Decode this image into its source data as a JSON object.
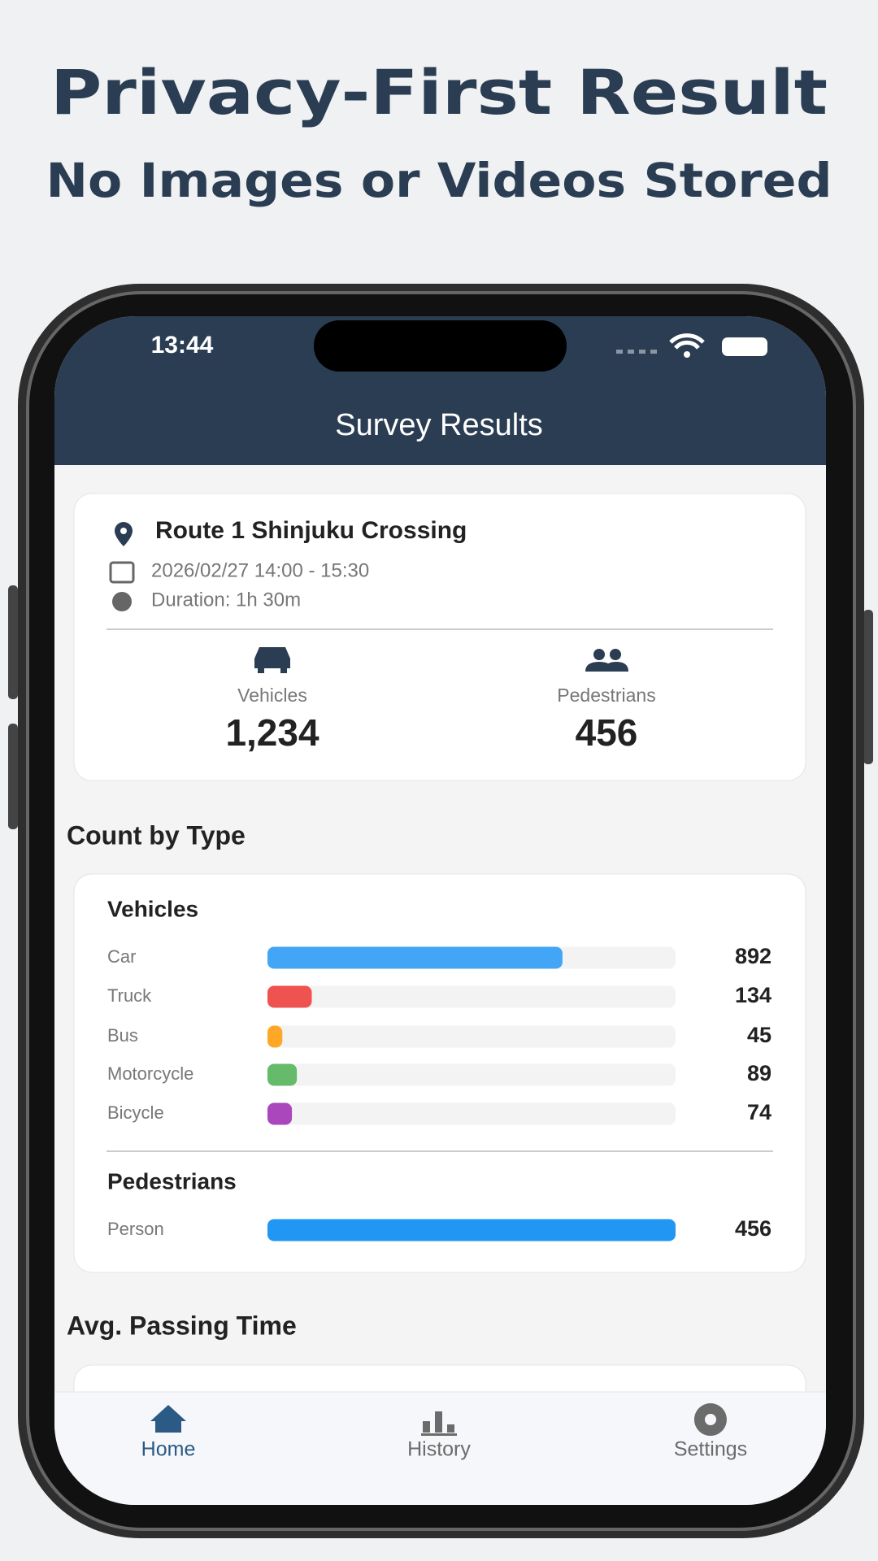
{
  "header": {
    "title": "Privacy-First Result",
    "subtitle": "No Images or Videos Stored"
  },
  "status_bar": {
    "time": "13:44"
  },
  "app_bar": {
    "title": "Survey Results"
  },
  "summary": {
    "location": "Route 1 Shinjuku Crossing",
    "date_range": "2026/02/27 14:00 - 15:30",
    "duration": "Duration: 1h 30m",
    "vehicles": {
      "label": "Vehicles",
      "value": 1234,
      "value_label": "1,234"
    },
    "pedestrians": {
      "label": "Pedestrians",
      "value": 456
    }
  },
  "count_by_type": {
    "title": "Count by Type",
    "groups": [
      {
        "title": "Vehicles",
        "items": [
          {
            "name": "Car",
            "value": 892,
            "color": "#42a5f5"
          },
          {
            "name": "Truck",
            "value": 134,
            "color": "#ef5350"
          },
          {
            "name": "Bus",
            "value": 45,
            "color": "#ffa726"
          },
          {
            "name": "Motorcycle",
            "value": 89,
            "color": "#66bb6a"
          },
          {
            "name": "Bicycle",
            "value": 74,
            "color": "#ab47bc"
          }
        ]
      },
      {
        "title": "Pedestrians",
        "items": [
          {
            "name": "Person",
            "value": 456,
            "color": "#2196f3"
          }
        ]
      }
    ]
  },
  "avg_passing_time": {
    "title": "Avg. Passing Time"
  },
  "nav": {
    "items": [
      {
        "label": "Home",
        "active": true
      },
      {
        "label": "History",
        "active": false
      },
      {
        "label": "Settings",
        "active": false
      }
    ]
  }
}
